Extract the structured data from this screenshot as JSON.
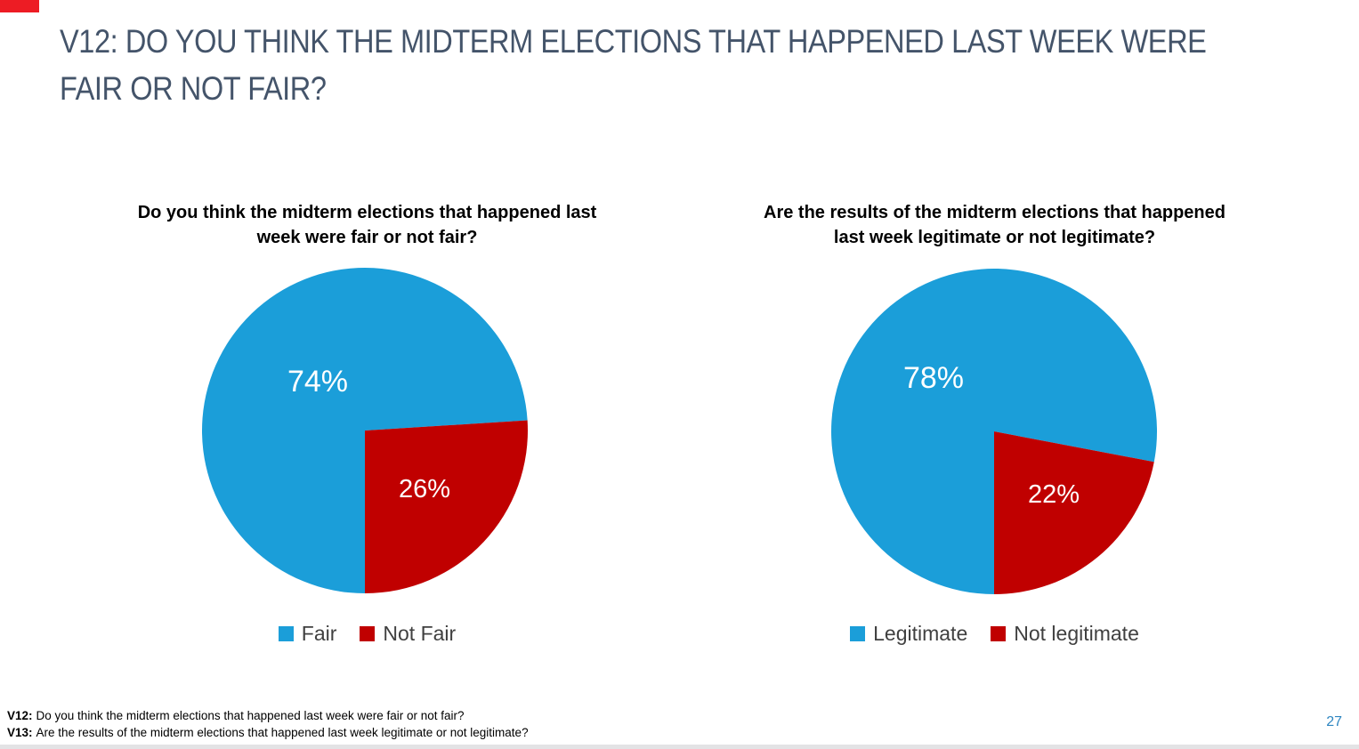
{
  "slide": {
    "title": "V12: DO YOU THINK THE MIDTERM ELECTIONS THAT HAPPENED LAST WEEK WERE FAIR OR NOT FAIR?",
    "page_number": "27"
  },
  "footnotes": [
    {
      "prefix": "V12:",
      "text": "Do you think the midterm elections that happened last week were fair or not fair?"
    },
    {
      "prefix": "V13:",
      "text": "Are the results of the midterm elections that happened last week legitimate or not legitimate?"
    }
  ],
  "colors": {
    "accent_corner": "#ED1C24",
    "title_text": "#44546A",
    "legend_text": "#404040",
    "page_number": "#2E86C1",
    "bottom_bar": "#E3E3E5",
    "slice_blue": "#1B9ED9",
    "slice_red": "#C00000",
    "label_text": "#FFFFFF"
  },
  "chart_data": [
    {
      "type": "pie",
      "title": "Do you think the midterm elections that happened last week were fair or not fair?",
      "categories": [
        "Fair",
        "Not Fair"
      ],
      "values": [
        74,
        26
      ],
      "labels": [
        "74%",
        "26%"
      ],
      "colors": [
        "#1B9ED9",
        "#C00000"
      ],
      "start_angle_deg": 180,
      "direction": "clockwise",
      "legend_position": "bottom",
      "data_labels": "inside, white"
    },
    {
      "type": "pie",
      "title": "Are the results of the midterm elections that happened last week legitimate or not legitimate?",
      "categories": [
        "Legitimate",
        "Not legitimate"
      ],
      "values": [
        78,
        22
      ],
      "labels": [
        "78%",
        "22%"
      ],
      "colors": [
        "#1B9ED9",
        "#C00000"
      ],
      "start_angle_deg": 180,
      "direction": "clockwise",
      "legend_position": "bottom",
      "data_labels": "inside, white"
    }
  ]
}
